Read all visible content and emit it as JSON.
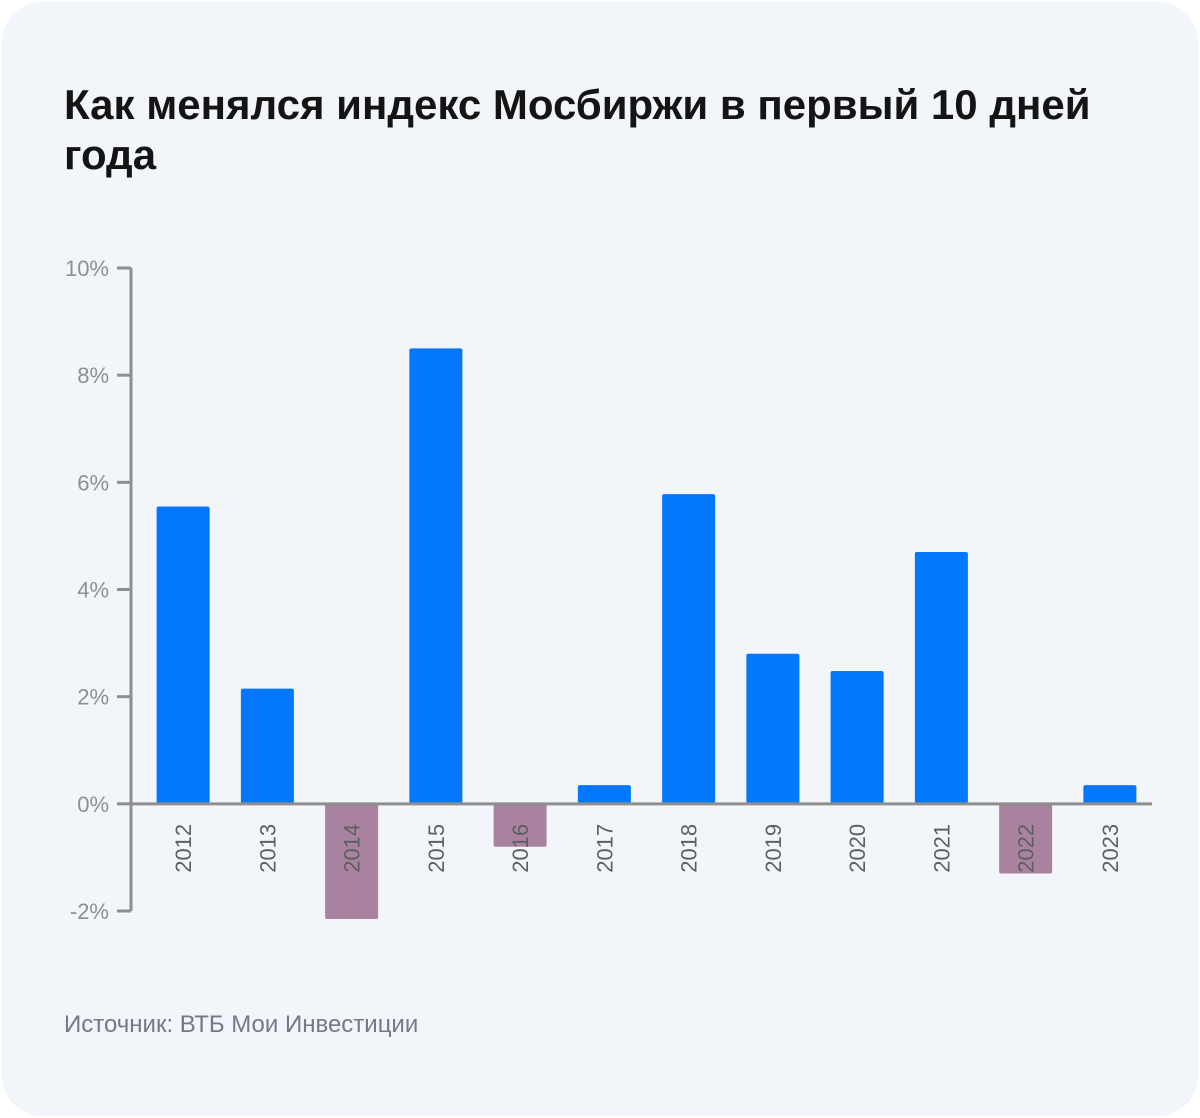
{
  "chart_data": {
    "type": "bar",
    "title": "Как менялся индекс Мосбиржи в первый 10 дней года",
    "xlabel": "",
    "ylabel": "",
    "categories": [
      "2012",
      "2013",
      "2014",
      "2015",
      "2016",
      "2017",
      "2018",
      "2019",
      "2020",
      "2021",
      "2022",
      "2023"
    ],
    "values": [
      5.55,
      2.15,
      -2.15,
      8.5,
      -0.8,
      0.35,
      5.78,
      2.8,
      2.48,
      4.7,
      -1.3,
      0.35
    ],
    "ylim": [
      -2,
      10
    ],
    "yticks": [
      -2,
      0,
      2,
      4,
      6,
      8,
      10
    ],
    "ytick_labels": [
      "-2%",
      "0%",
      "2%",
      "4%",
      "6%",
      "8%",
      "10%"
    ],
    "grid": false,
    "legend": "none",
    "colors": {
      "positive": "#0478fc",
      "negative": "#a9829f",
      "axis": "#8e8e8e",
      "tick_label": "#8f8f8f",
      "year_label": "#5f5f5f"
    }
  },
  "source": "Источник: ВТБ Мои Инвестиции"
}
